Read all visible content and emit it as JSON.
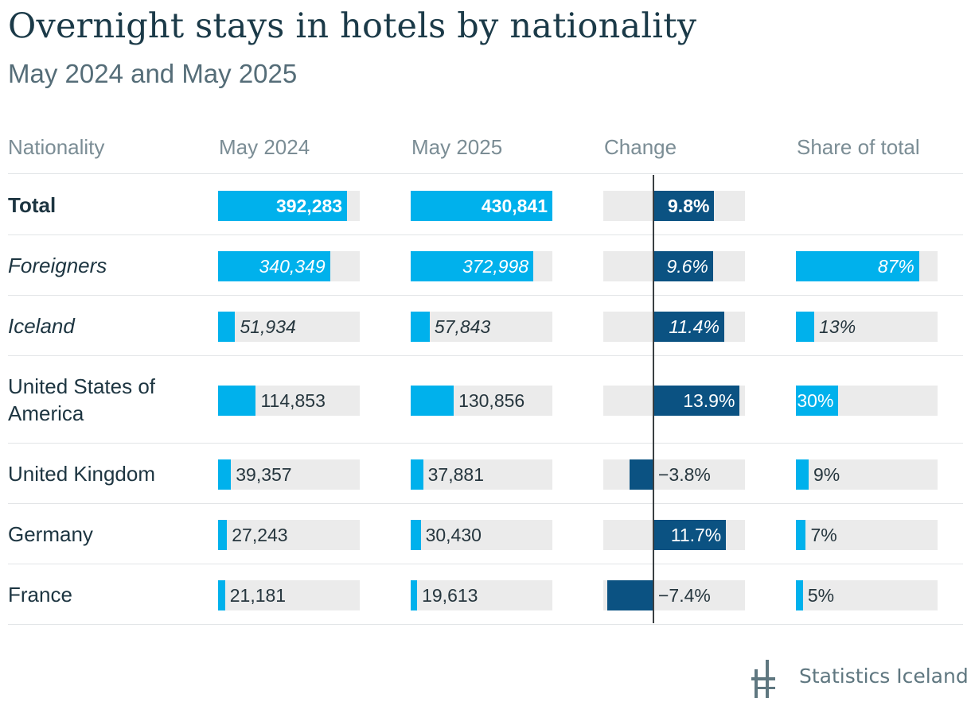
{
  "title": "Overnight stays in hotels by nationality",
  "subtitle": "May 2024 and May 2025",
  "columns": {
    "nationality": "Nationality",
    "may2024": "May 2024",
    "may2025": "May 2025",
    "change": "Change",
    "share": "Share of total"
  },
  "source": "Statistics Iceland",
  "colors": {
    "bar": "#00b1ec",
    "change_bar": "#0b5282",
    "track": "#ebebeb",
    "text": "#1d3541"
  },
  "chart_data": {
    "type": "table",
    "max_value": 430841,
    "max_change_pct": 15,
    "rows": [
      {
        "label": "Total",
        "style": "bold",
        "may2024": 392283,
        "may2024_text": "392,283",
        "may2025": 430841,
        "may2025_text": "430,841",
        "change": 9.8,
        "change_text": "9.8%",
        "share": null,
        "share_text": ""
      },
      {
        "label": "Foreigners",
        "style": "italic",
        "may2024": 340349,
        "may2024_text": "340,349",
        "may2025": 372998,
        "may2025_text": "372,998",
        "change": 9.6,
        "change_text": "9.6%",
        "share": 87,
        "share_text": "87%"
      },
      {
        "label": "Iceland",
        "style": "italic",
        "may2024": 51934,
        "may2024_text": "51,934",
        "may2025": 57843,
        "may2025_text": "57,843",
        "change": 11.4,
        "change_text": "11.4%",
        "share": 13,
        "share_text": "13%"
      },
      {
        "label": "United States of America",
        "style": "normal",
        "may2024": 114853,
        "may2024_text": "114,853",
        "may2025": 130856,
        "may2025_text": "130,856",
        "change": 13.9,
        "change_text": "13.9%",
        "share": 30,
        "share_text": "30%"
      },
      {
        "label": "United Kingdom",
        "style": "normal",
        "may2024": 39357,
        "may2024_text": "39,357",
        "may2025": 37881,
        "may2025_text": "37,881",
        "change": -3.8,
        "change_text": "−3.8%",
        "share": 9,
        "share_text": "9%"
      },
      {
        "label": "Germany",
        "style": "normal",
        "may2024": 27243,
        "may2024_text": "27,243",
        "may2025": 30430,
        "may2025_text": "30,430",
        "change": 11.7,
        "change_text": "11.7%",
        "share": 7,
        "share_text": "7%"
      },
      {
        "label": "France",
        "style": "normal",
        "may2024": 21181,
        "may2024_text": "21,181",
        "may2025": 19613,
        "may2025_text": "19,613",
        "change": -7.4,
        "change_text": "−7.4%",
        "share": 5,
        "share_text": "5%"
      }
    ]
  }
}
